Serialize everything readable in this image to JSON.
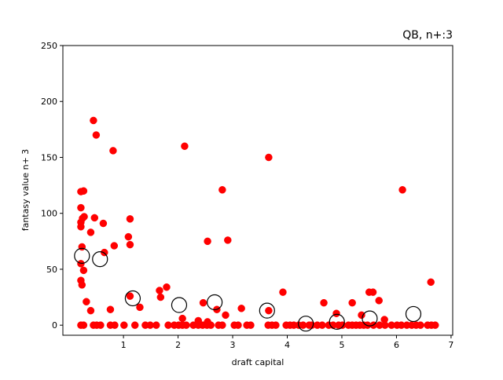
{
  "chart_data": {
    "type": "scatter",
    "title": "QB, n+:3",
    "xlabel": "draft capital",
    "ylabel": "fantasy value n+ 3",
    "xlim": [
      -0.11,
      7.03
    ],
    "ylim": [
      -9,
      250
    ],
    "xticks": [
      1,
      2,
      3,
      4,
      5,
      6,
      7
    ],
    "yticks": [
      0,
      50,
      100,
      150,
      200,
      250
    ],
    "series": [
      {
        "color": "#ff0000",
        "marker": "filled",
        "x": [
          0.22,
          0.27,
          0.22,
          0.25,
          0.28,
          0.22,
          0.22,
          0.24,
          0.22,
          0.27,
          0.22,
          0.24,
          0.32,
          0.4,
          0.4,
          0.45,
          0.5,
          0.47,
          0.63,
          0.65,
          0.81,
          0.83,
          0.76,
          1.12,
          1.09,
          1.12,
          1.12,
          1.3,
          1.66,
          1.68,
          1.79,
          2.12,
          2.54,
          2.46,
          2.81,
          2.91,
          2.71,
          2.87,
          3.16,
          3.66,
          3.66,
          3.92,
          4.67,
          4.9,
          5.19,
          5.36,
          5.5,
          5.57,
          5.68,
          5.78,
          6.11,
          6.63,
          2.08,
          2.37,
          2.54,
          0.22,
          0.27,
          0.45,
          0.51,
          0.58,
          0.76,
          0.84,
          1.01,
          1.21,
          1.4,
          1.49,
          1.6,
          1.82,
          1.93,
          2.01,
          2.08,
          2.15,
          2.28,
          2.37,
          2.45,
          2.53,
          2.6,
          2.74,
          2.81,
          3.03,
          3.1,
          3.26,
          3.33,
          3.65,
          3.72,
          3.79,
          3.98,
          4.05,
          4.12,
          4.21,
          4.29,
          4.4,
          4.45,
          4.55,
          4.64,
          4.76,
          4.84,
          4.94,
          5.01,
          5.12,
          5.19,
          5.26,
          5.33,
          5.4,
          5.47,
          5.58,
          5.69,
          5.79,
          5.91,
          6.01,
          6.09,
          6.19,
          6.28,
          6.36,
          6.44,
          6.57,
          6.64,
          6.71
        ],
        "values": [
          119.4,
          120,
          105,
          95.5,
          97,
          92,
          88,
          70,
          55,
          49,
          40,
          36,
          21,
          13,
          83,
          183,
          170,
          96,
          91,
          65,
          156,
          71,
          14,
          95,
          79,
          72,
          26,
          16,
          31,
          25,
          34,
          160,
          75,
          20,
          121,
          76,
          14,
          9,
          15,
          150,
          13,
          29.5,
          20,
          10.5,
          20,
          9,
          29.5,
          29.5,
          22,
          5,
          121,
          38.5,
          6,
          4,
          3,
          0,
          0,
          0,
          0,
          0,
          0,
          0,
          0,
          0,
          0,
          0,
          0,
          0,
          0,
          0,
          0,
          0,
          0,
          0,
          0,
          0,
          0,
          0,
          0,
          0,
          0,
          0,
          0,
          0,
          0,
          0,
          0,
          0,
          0,
          0,
          0,
          0,
          0,
          0,
          0,
          0,
          0,
          0,
          0,
          0,
          0,
          0,
          0,
          0,
          0,
          0,
          0,
          0,
          0,
          0,
          0,
          0,
          0,
          0,
          0,
          0,
          0,
          0
        ]
      },
      {
        "color": "#000000",
        "marker": "hollow",
        "x": [
          0.24,
          0.57,
          1.17,
          2.02,
          2.67,
          3.63,
          4.34,
          4.91,
          5.51,
          6.31
        ],
        "values": [
          62,
          59,
          24,
          18,
          20.5,
          13,
          1.4,
          3,
          6,
          10
        ]
      }
    ]
  }
}
